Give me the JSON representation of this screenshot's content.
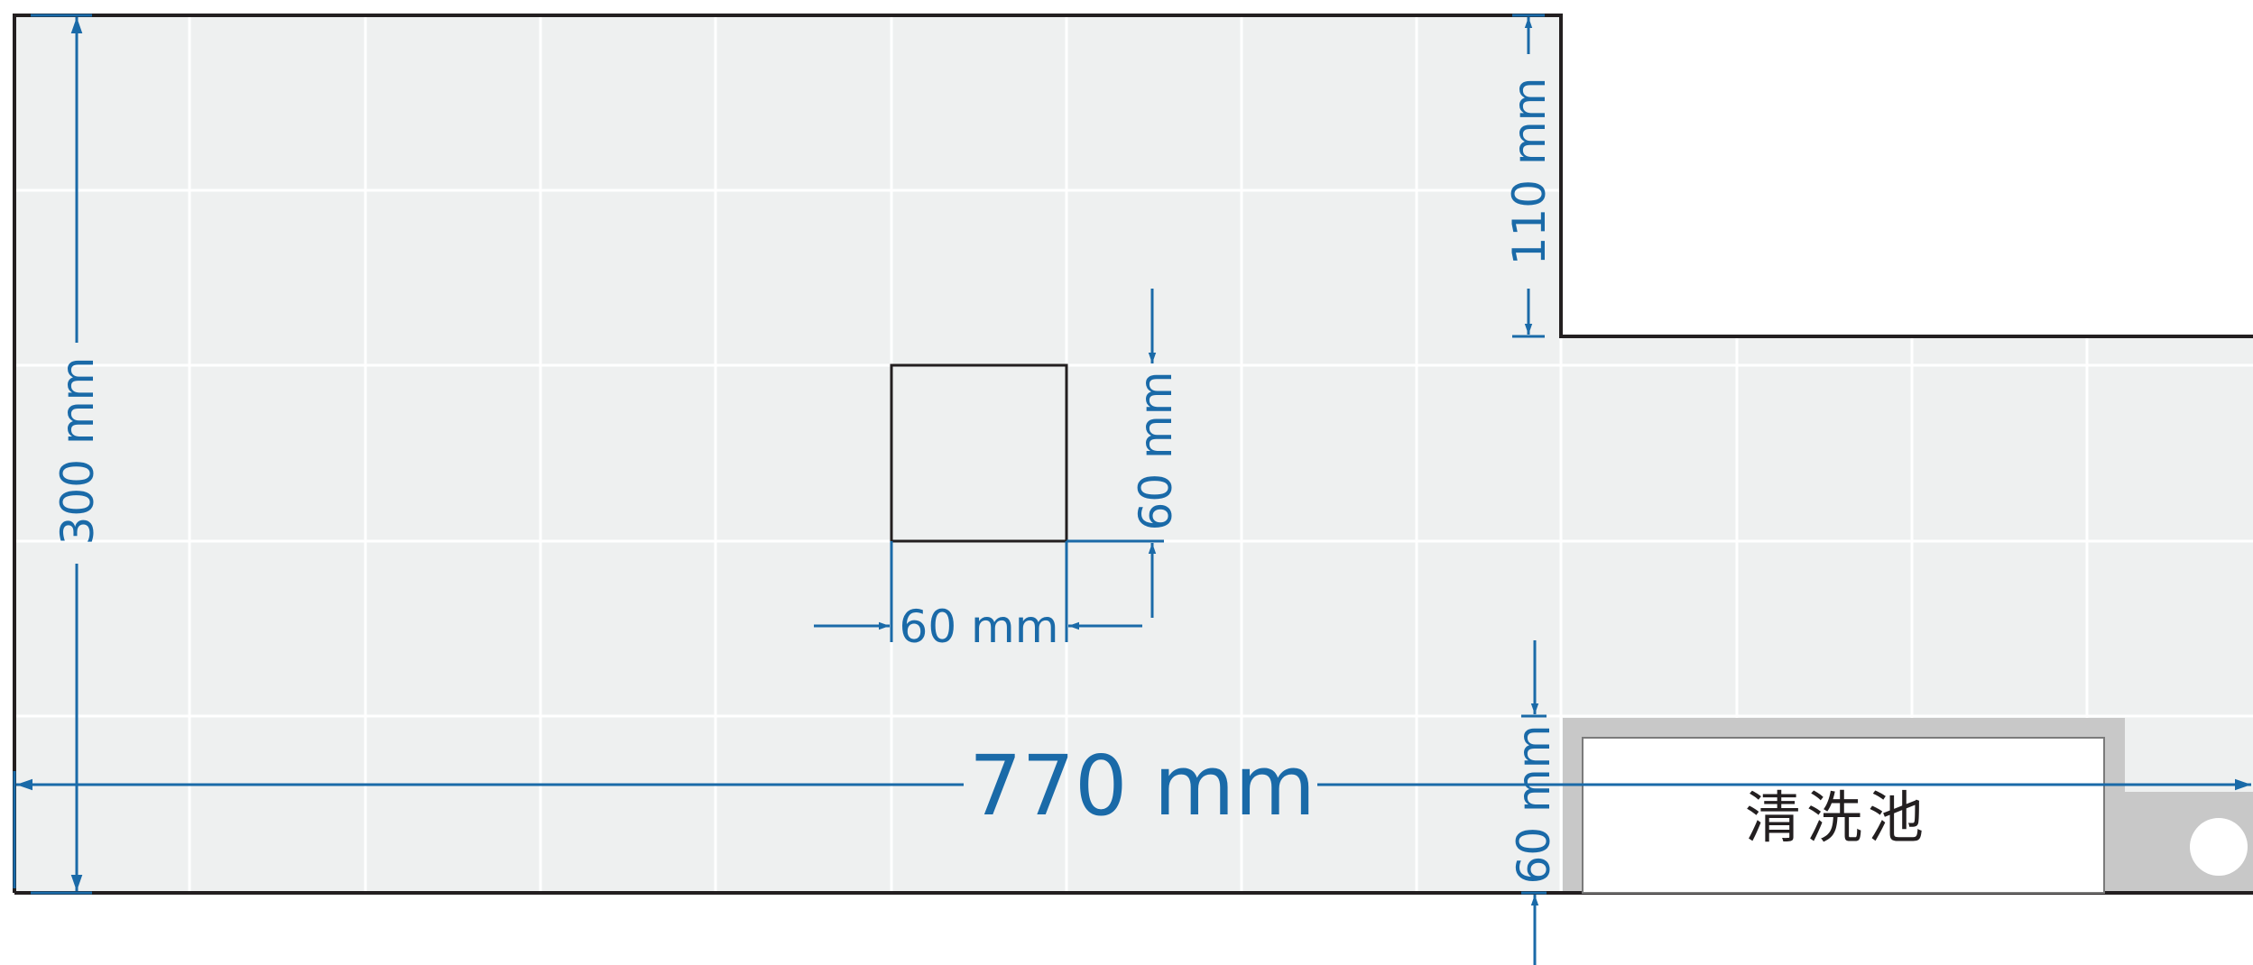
{
  "colors": {
    "background": "#ffffff",
    "floor_fill": "#eef0f0",
    "grid_line": "#ffffff",
    "wall": "#231f20",
    "dimension": "#1a6aa8",
    "sink_rim": "#c8c8c8",
    "sink_inner": "#ffffff",
    "drain": "#ffffff"
  },
  "icons": {
    "drain": "circle-drain-icon"
  },
  "diagram": {
    "dimensions": {
      "total_width": "770 mm",
      "total_height": "300 mm",
      "wall_offset": "110 mm",
      "tile_width": "60 mm",
      "tile_height": "60 mm",
      "sink_gap": "60 mm"
    },
    "labels": {
      "sink": "清洗池"
    }
  }
}
